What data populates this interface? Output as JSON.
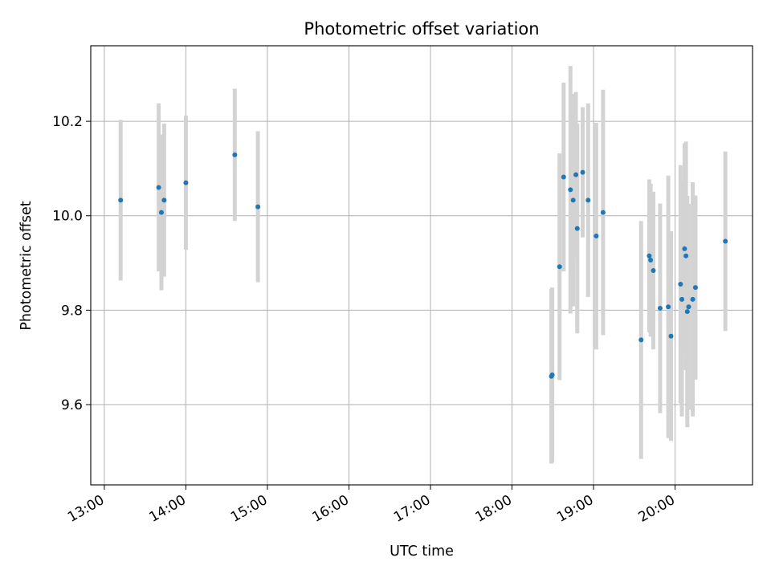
{
  "chart_data": {
    "type": "scatter",
    "title": "Photometric offset variation",
    "xlabel": "UTC time",
    "ylabel": "Photometric offset",
    "x_ticks": [
      "13:00",
      "14:00",
      "15:00",
      "16:00",
      "17:00",
      "18:00",
      "19:00",
      "20:00"
    ],
    "y_ticks": [
      "9.6",
      "9.8",
      "10.0",
      "10.2"
    ],
    "xlim": [
      "12:50",
      "20:57"
    ],
    "ylim": [
      9.43,
      10.36
    ],
    "grid": true,
    "point_color": "#1f77b4",
    "errorbar_color": "#d3d3d3",
    "points": [
      {
        "x": "13:12",
        "y": 10.033,
        "err": 0.17
      },
      {
        "x": "13:40",
        "y": 10.06,
        "err": 0.178
      },
      {
        "x": "13:42",
        "y": 10.007,
        "err": 0.165
      },
      {
        "x": "13:44",
        "y": 10.033,
        "err": 0.162
      },
      {
        "x": "14:00",
        "y": 10.07,
        "err": 0.142
      },
      {
        "x": "14:36",
        "y": 10.129,
        "err": 0.14
      },
      {
        "x": "14:53",
        "y": 10.019,
        "err": 0.16
      },
      {
        "x": "18:29",
        "y": 9.66,
        "err": 0.185
      },
      {
        "x": "18:29.6",
        "y": 9.663,
        "err": 0.185
      },
      {
        "x": "18:35",
        "y": 9.892,
        "err": 0.24
      },
      {
        "x": "18:38",
        "y": 10.082,
        "err": 0.2
      },
      {
        "x": "18:43",
        "y": 10.055,
        "err": 0.262
      },
      {
        "x": "18:45",
        "y": 10.033,
        "err": 0.225
      },
      {
        "x": "18:47",
        "y": 10.087,
        "err": 0.175
      },
      {
        "x": "18:48",
        "y": 9.973,
        "err": 0.222
      },
      {
        "x": "18:52",
        "y": 10.092,
        "err": 0.138
      },
      {
        "x": "18:56",
        "y": 10.033,
        "err": 0.205
      },
      {
        "x": "19:02",
        "y": 9.957,
        "err": 0.24
      },
      {
        "x": "19:07",
        "y": 10.007,
        "err": 0.26
      },
      {
        "x": "19:35",
        "y": 9.737,
        "err": 0.252
      },
      {
        "x": "19:41",
        "y": 9.915,
        "err": 0.162
      },
      {
        "x": "19:42",
        "y": 9.906,
        "err": 0.162
      },
      {
        "x": "19:44",
        "y": 9.884,
        "err": 0.167
      },
      {
        "x": "19:49",
        "y": 9.804,
        "err": 0.222
      },
      {
        "x": "19:55",
        "y": 9.807,
        "err": 0.278
      },
      {
        "x": "19:57",
        "y": 9.745,
        "err": 0.222
      },
      {
        "x": "20:04",
        "y": 9.855,
        "err": 0.252
      },
      {
        "x": "20:05",
        "y": 9.823,
        "err": 0.248
      },
      {
        "x": "20:07",
        "y": 9.93,
        "err": 0.223
      },
      {
        "x": "20:08",
        "y": 9.915,
        "err": 0.242
      },
      {
        "x": "20:09",
        "y": 9.797,
        "err": 0.245
      },
      {
        "x": "20:10",
        "y": 9.807,
        "err": 0.218
      },
      {
        "x": "20:13",
        "y": 9.823,
        "err": 0.248
      },
      {
        "x": "20:15",
        "y": 9.848,
        "err": 0.195
      },
      {
        "x": "20:37",
        "y": 9.946,
        "err": 0.19
      }
    ]
  }
}
